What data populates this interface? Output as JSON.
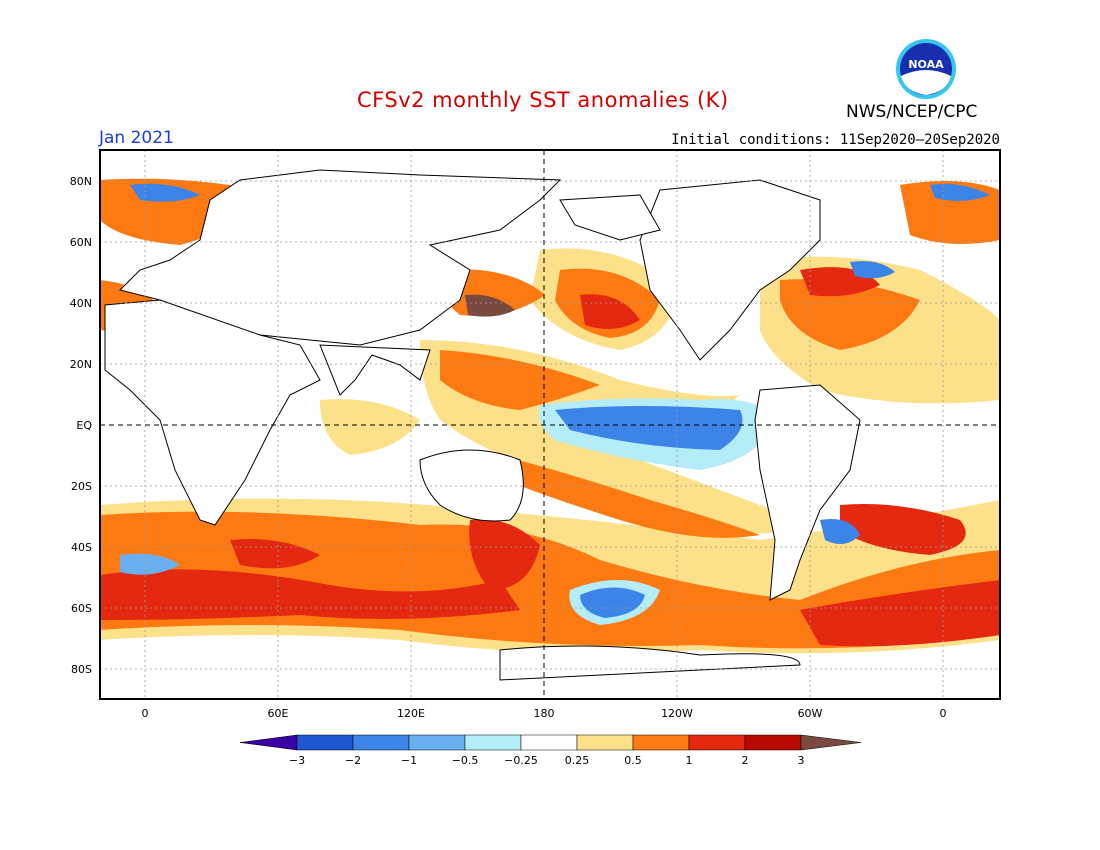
{
  "title": "CFSv2 monthly SST anomalies (K)",
  "org": "NWS/NCEP/CPC",
  "valid_date": "Jan 2021",
  "initial_conditions": "Initial conditions: 11Sep2020–20Sep2020",
  "logo_text": "NOAA",
  "lat_labels": [
    "80N",
    "60N",
    "40N",
    "20N",
    "EQ",
    "20S",
    "40S",
    "60S",
    "80S"
  ],
  "lon_labels": [
    "0",
    "60E",
    "120E",
    "180",
    "120W",
    "60W",
    "0"
  ],
  "colorbar": {
    "labels": [
      "−3",
      "−2",
      "−1",
      "−0.5",
      "−0.25",
      "0.25",
      "0.5",
      "1",
      "2",
      "3"
    ],
    "colors": [
      "#3a00a8",
      "#1f58d0",
      "#3c84e8",
      "#6ab0f0",
      "#b4ecf8",
      "#ffffff",
      "#fde08a",
      "#fd7a12",
      "#e52810",
      "#b80a00",
      "#7a4a40"
    ]
  }
}
